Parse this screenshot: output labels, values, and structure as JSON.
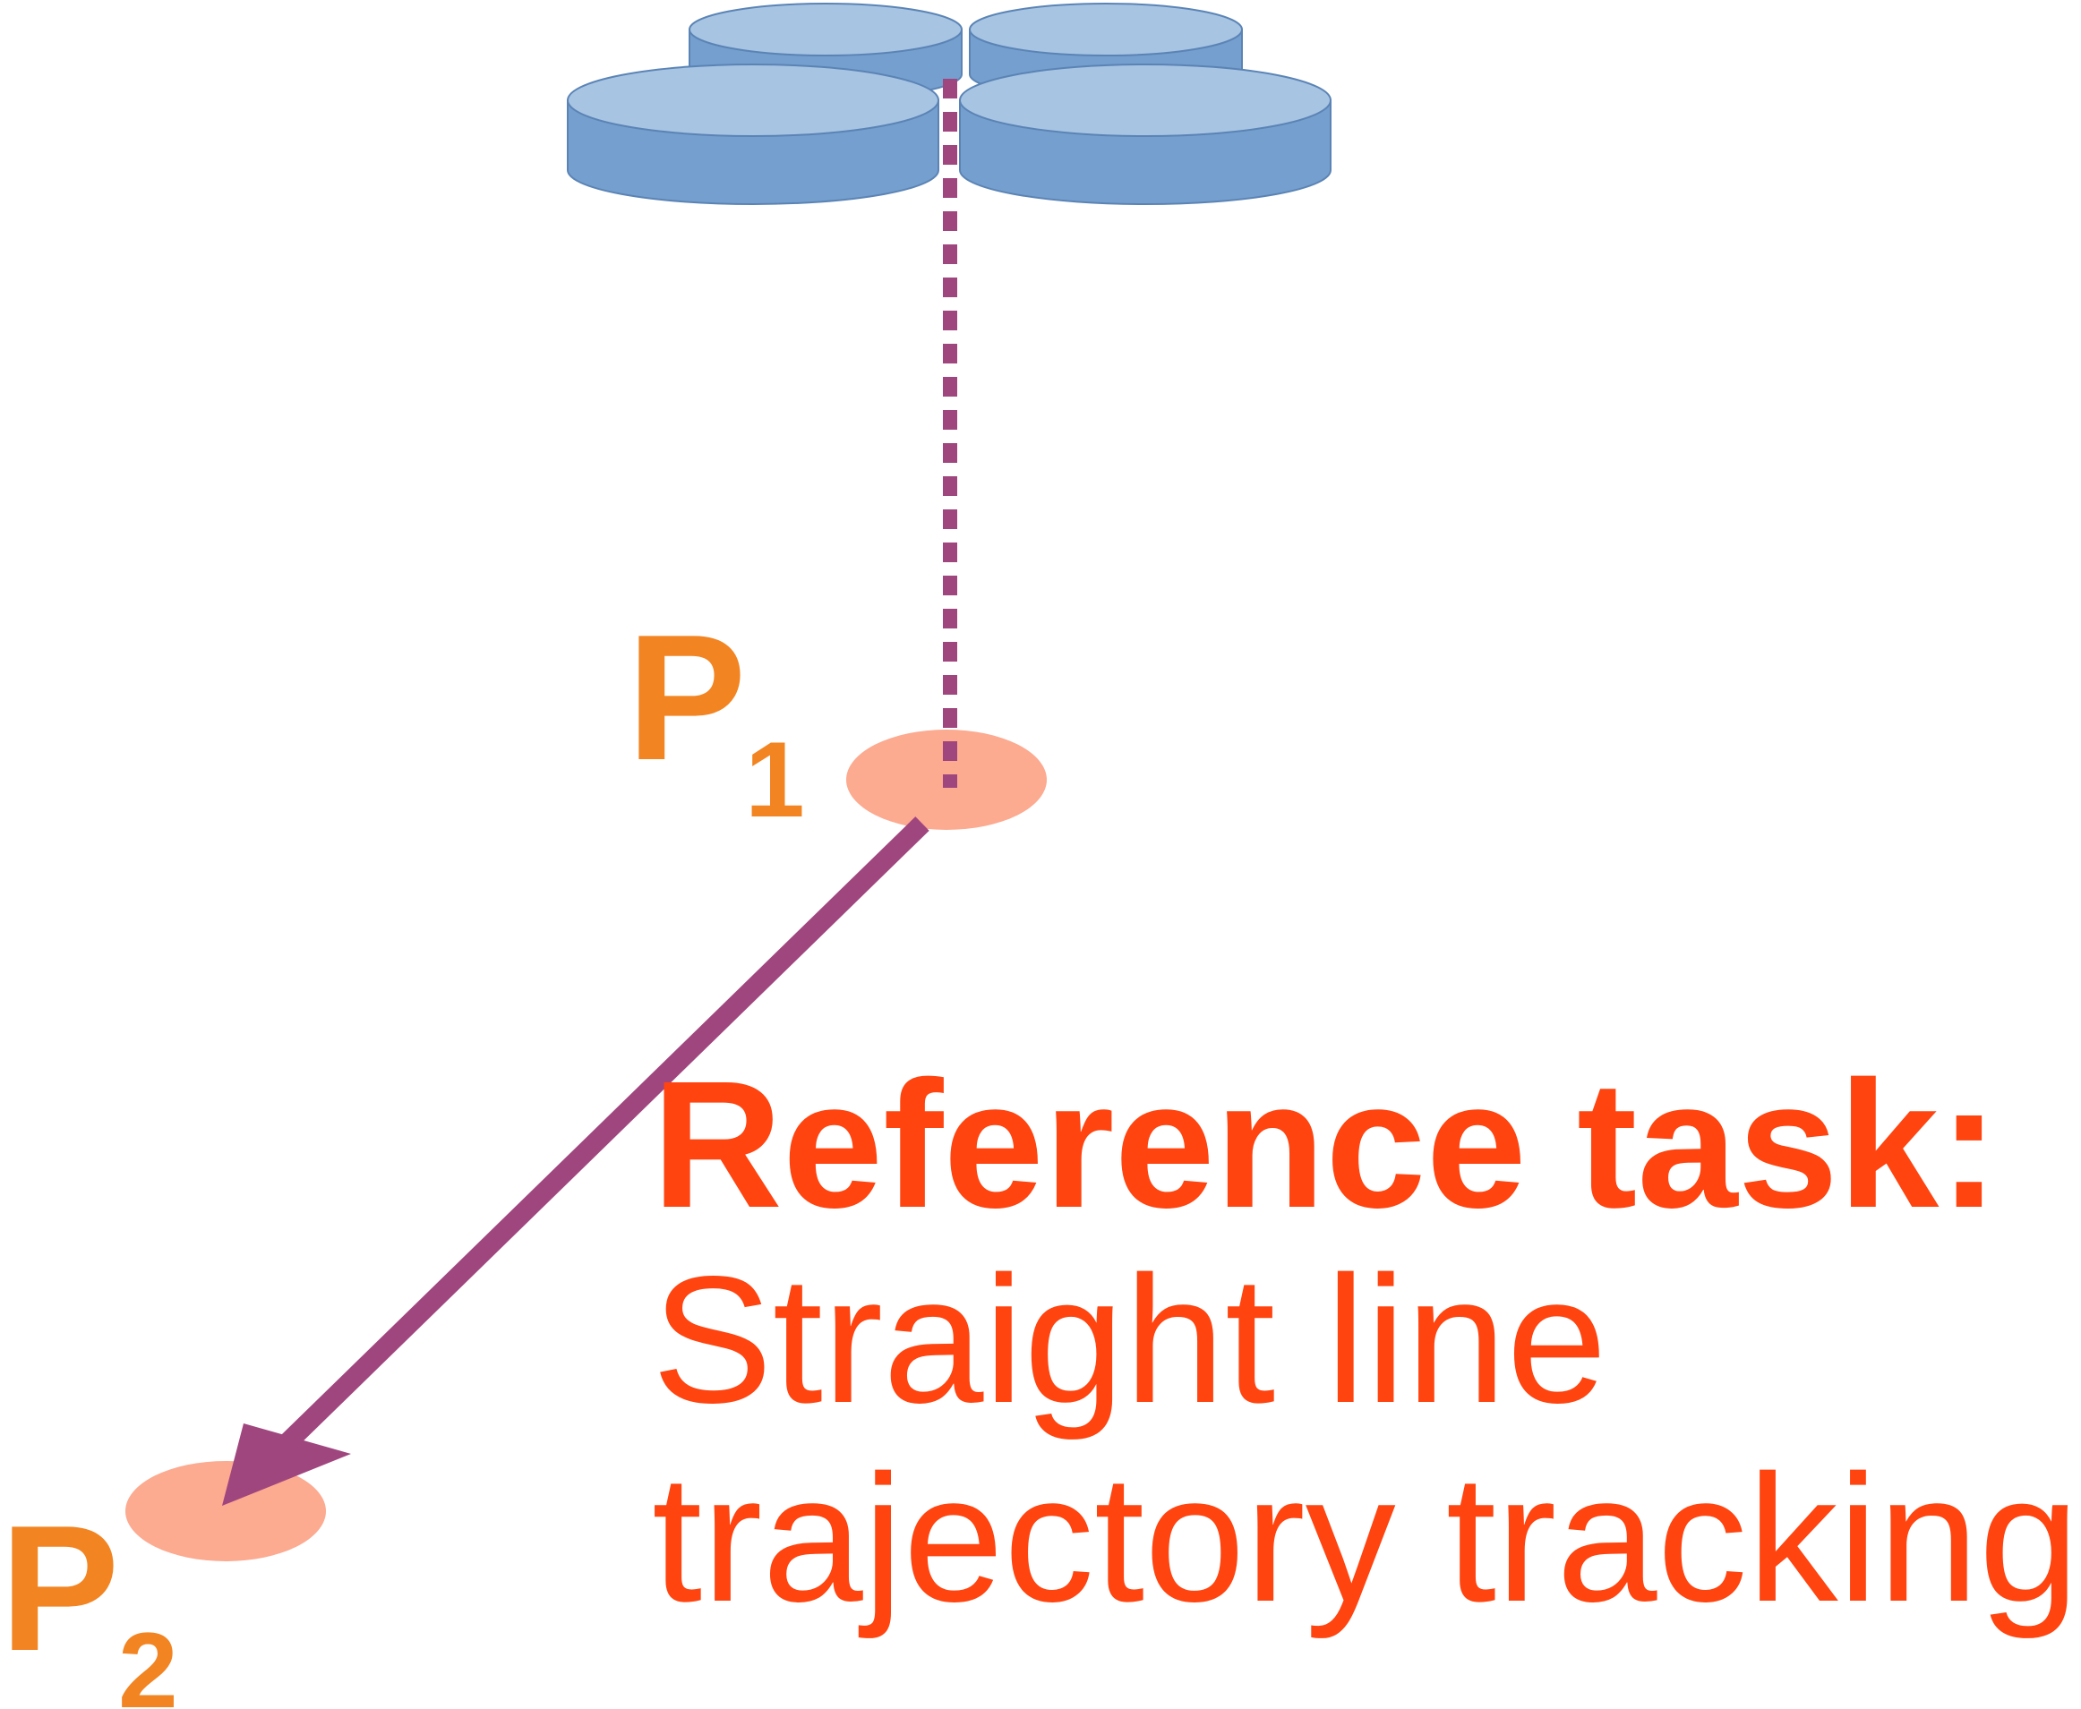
{
  "points": {
    "p1": {
      "letter": "P",
      "subscript": "1"
    },
    "p2": {
      "letter": "P",
      "subscript": "2"
    }
  },
  "caption": {
    "heading": "Reference task",
    "heading_suffix": ":",
    "line1": "Straight line",
    "line2": "trajectory tracking"
  },
  "colors": {
    "rotor_top": "#a7c4e3",
    "rotor_side": "#749fcf",
    "rotor_stroke": "#5b84b5",
    "waypoint_fill": "#fcaa90",
    "trajectory": "#a0467f",
    "point_label": "#f28422",
    "caption_text": "#ff4410"
  },
  "icons": {
    "drone": "quadrotor-drone-icon",
    "waypoint": "waypoint-ellipse",
    "arrow": "trajectory-arrow"
  }
}
